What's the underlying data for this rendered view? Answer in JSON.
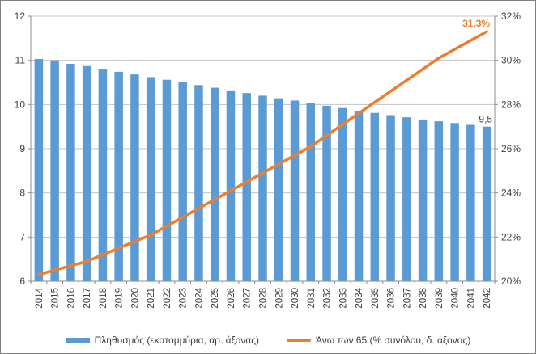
{
  "chart_data": {
    "type": "bar",
    "title": "",
    "categories": [
      "2014",
      "2015",
      "2016",
      "2017",
      "2018",
      "2019",
      "2020",
      "2021",
      "2022",
      "2023",
      "2024",
      "2025",
      "2026",
      "2027",
      "2028",
      "2029",
      "2030",
      "2031",
      "2032",
      "2033",
      "2034",
      "2035",
      "2036",
      "2037",
      "2038",
      "2039",
      "2040",
      "2041",
      "2042"
    ],
    "series": [
      {
        "name": "Πληθυσμός (εκατομμύρια, αρ. άξονας)",
        "type": "bar",
        "axis": "left",
        "color": "#5B9BD5",
        "values": [
          11.03,
          11.0,
          10.92,
          10.87,
          10.81,
          10.74,
          10.68,
          10.62,
          10.56,
          10.5,
          10.44,
          10.38,
          10.32,
          10.26,
          10.2,
          10.14,
          10.09,
          10.03,
          9.97,
          9.92,
          9.86,
          9.81,
          9.76,
          9.71,
          9.66,
          9.62,
          9.58,
          9.54,
          9.5
        ]
      },
      {
        "name": "Άνω των 65 (% συνόλου, δ. άξονας)",
        "type": "line",
        "axis": "right",
        "color": "#ED7D31",
        "values": [
          20.3,
          20.5,
          20.7,
          20.9,
          21.2,
          21.5,
          21.8,
          22.1,
          22.5,
          22.9,
          23.3,
          23.7,
          24.1,
          24.5,
          24.9,
          25.3,
          25.7,
          26.1,
          26.6,
          27.1,
          27.6,
          28.1,
          28.6,
          29.1,
          29.6,
          30.1,
          30.5,
          30.9,
          31.3
        ]
      }
    ],
    "y_left": {
      "min": 6,
      "max": 12,
      "tick_values": [
        6,
        7,
        8,
        9,
        10,
        11,
        12
      ],
      "tick_labels": [
        "6",
        "7",
        "8",
        "9",
        "10",
        "11",
        "12"
      ]
    },
    "y_right": {
      "min": 20,
      "max": 32,
      "tick_values": [
        20,
        22,
        24,
        26,
        28,
        30,
        32
      ],
      "tick_labels": [
        "20%",
        "22%",
        "24%",
        "26%",
        "28%",
        "30%",
        "32%"
      ]
    },
    "annotations": [
      {
        "text": "31,3%",
        "series": 1,
        "index": 28,
        "color": "#ED7D31",
        "bold": true
      },
      {
        "text": "9,5",
        "series": 0,
        "index": 28,
        "color": "#3f3f3f",
        "bold": false
      }
    ],
    "legend_position": "bottom",
    "grid": true,
    "colors": {
      "gridline": "#c3c3c3",
      "axis": "#8c8c8c",
      "tick_text": "#3f3f3f",
      "background": "#ffffff"
    }
  }
}
